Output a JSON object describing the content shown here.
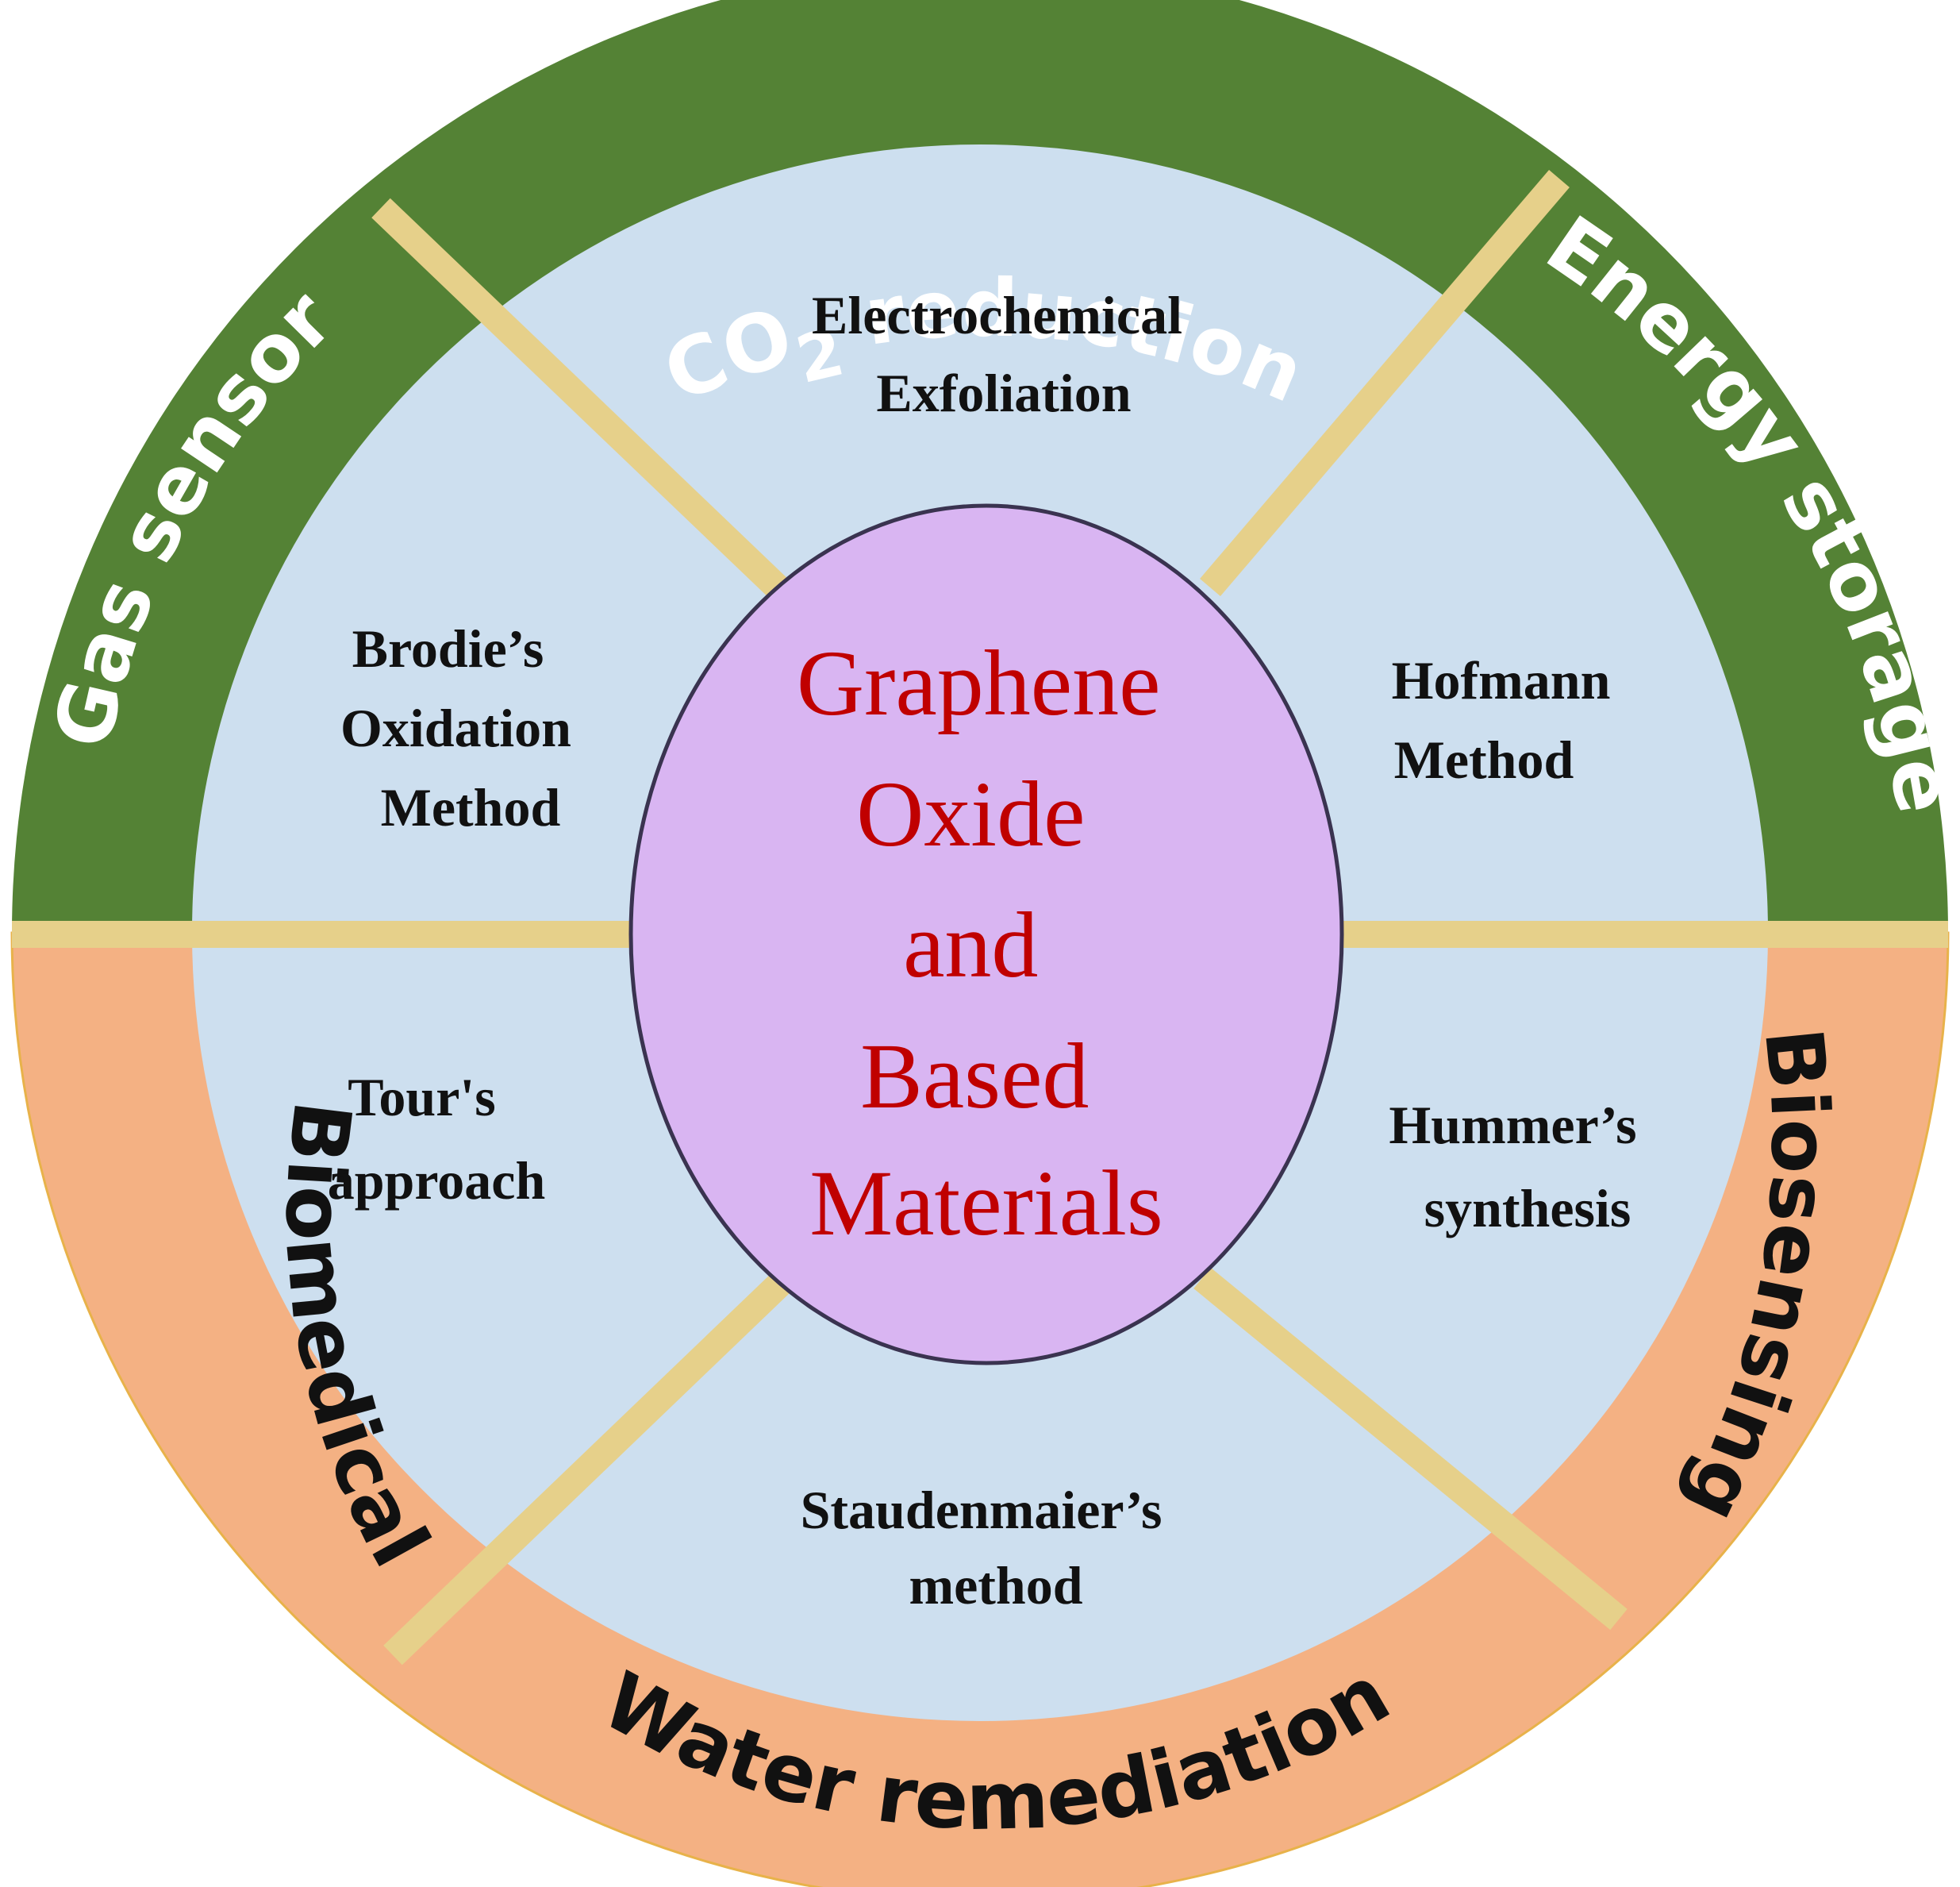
{
  "colors": {
    "ring_top": "#548235",
    "ring_bottom": "#F4B183",
    "ring_top_text": "#ffffff",
    "ring_bottom_text": "#111111",
    "inner_fill": "#CDDFEF",
    "divider": "#E6D08A",
    "center_fill": "#D9B5F2",
    "center_stroke": "#3A3350",
    "center_text": "#C00000"
  },
  "applications": {
    "co2_reduction": {
      "main": "CO",
      "sub": "2",
      "rest": " reduction"
    },
    "energy_storage": "Energy storage",
    "gas_sensor": "Gas sensor",
    "biosensing": "Biosensing",
    "biomedical": "Biomedical",
    "water_remediation": "Water remediation"
  },
  "methods": {
    "electrochemical": [
      "Electrochemical",
      "Exfoliation"
    ],
    "brodie": [
      "Brodie’s",
      "Oxidation",
      "Method"
    ],
    "hofmann": [
      "Hofmann",
      "Method"
    ],
    "tour": [
      "Tour's",
      "approach"
    ],
    "hummer": [
      "Hummer’s",
      "synthesis"
    ],
    "staudenmaier": [
      "Staudenmaier’s",
      "method"
    ]
  },
  "center": {
    "lines": [
      "Graphene",
      "Oxide",
      "and",
      "Based",
      "Materials"
    ]
  }
}
